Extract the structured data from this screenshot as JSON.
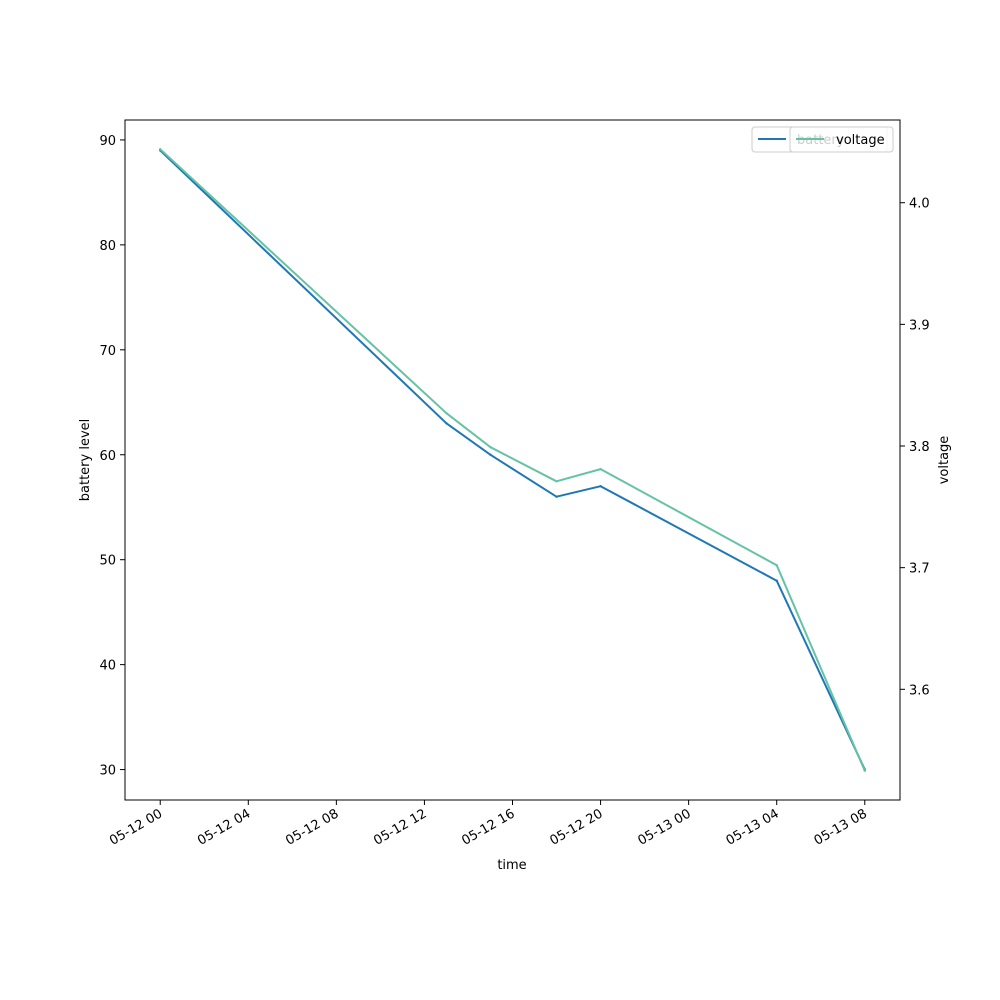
{
  "chart_data": {
    "type": "line",
    "xlabel": "time",
    "ylabel_left": "battery level",
    "ylabel_right": "voltage",
    "x_tick_labels": [
      "05-12 00",
      "05-12 04",
      "05-12 08",
      "05-12 12",
      "05-12 16",
      "05-12 20",
      "05-13 00",
      "05-13 04",
      "05-13 08"
    ],
    "y_left_ticks": [
      "30",
      "40",
      "50",
      "60",
      "70",
      "80",
      "90"
    ],
    "y_right_ticks": [
      "3.6",
      "3.7",
      "3.8",
      "3.9",
      "4.0"
    ],
    "x": [
      "2021-05-12 00:00",
      "2021-05-12 13:00",
      "2021-05-12 15:00",
      "2021-05-12 18:00",
      "2021-05-12 20:00",
      "2021-05-13 04:00",
      "2021-05-13 08:00"
    ],
    "series": [
      {
        "name": "battery",
        "axis": "left",
        "color": "#1f77b4",
        "values": [
          89,
          63,
          60,
          56,
          57,
          48,
          30
        ]
      },
      {
        "name": "voltage",
        "axis": "right",
        "color": "#66c2a5",
        "values": [
          4.044,
          3.827,
          3.799,
          3.771,
          3.781,
          3.702,
          3.533
        ]
      }
    ],
    "ylim_left": [
      27.1,
      91.9
    ],
    "ylim_right": [
      3.509,
      4.068
    ],
    "xlim": [
      "2021-05-11 22:24",
      "2021-05-13 09:36"
    ],
    "grid": false,
    "legend": "top-right"
  }
}
